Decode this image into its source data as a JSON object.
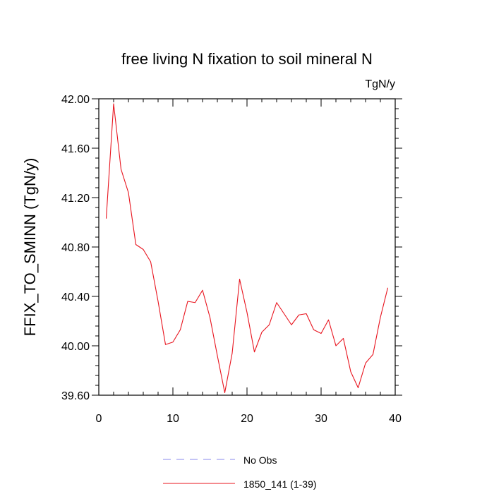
{
  "chart_data": {
    "type": "line",
    "title": "free living N fixation to soil mineral N",
    "units": "TgN/y",
    "ylabel": "FFIX_TO_SMINN  (TgN/y)",
    "xlabel": "",
    "xlim": [
      0,
      40
    ],
    "ylim": [
      39.6,
      42.0
    ],
    "x_ticks": [
      0,
      10,
      20,
      30,
      40
    ],
    "y_ticks": [
      39.6,
      40.0,
      40.4,
      40.8,
      41.2,
      41.6,
      42.0
    ],
    "y_tick_labels": [
      "39.60",
      "40.00",
      "40.40",
      "40.80",
      "41.20",
      "41.60",
      "42.00"
    ],
    "series": [
      {
        "name": "1850_141 (1-39)",
        "color": "#e8141e",
        "style": "solid",
        "x": [
          1,
          2,
          3,
          4,
          5,
          6,
          7,
          8,
          9,
          10,
          11,
          12,
          13,
          14,
          15,
          16,
          17,
          18,
          19,
          20,
          21,
          22,
          23,
          24,
          25,
          26,
          27,
          28,
          29,
          30,
          31,
          32,
          33,
          34,
          35,
          36,
          37,
          38,
          39
        ],
        "values": [
          41.03,
          41.96,
          41.43,
          41.24,
          40.82,
          40.78,
          40.68,
          40.36,
          40.01,
          40.03,
          40.13,
          40.36,
          40.35,
          40.45,
          40.23,
          39.92,
          39.62,
          39.94,
          40.54,
          40.27,
          39.95,
          40.11,
          40.17,
          40.35,
          40.26,
          40.17,
          40.25,
          40.26,
          40.13,
          40.1,
          40.21,
          40.0,
          40.06,
          39.79,
          39.66,
          39.86,
          39.93,
          40.23,
          40.47
        ]
      }
    ],
    "legend": {
      "placement": "bottom",
      "entries": [
        {
          "label": "No Obs",
          "color": "#8888ee",
          "style": "dashed"
        },
        {
          "label": "1850_141 (1-39)",
          "color": "#e8141e",
          "style": "solid"
        }
      ]
    }
  }
}
